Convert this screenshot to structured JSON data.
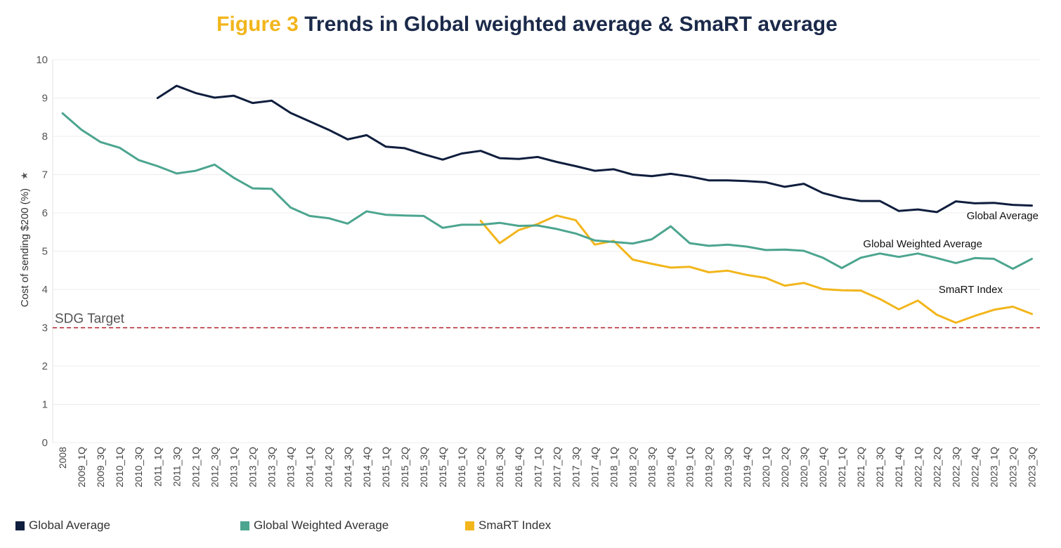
{
  "title": {
    "lead": "Figure 3",
    "rest": "Trends in Global weighted average & SmaRT average"
  },
  "chart_data": {
    "type": "line",
    "ylabel": "Cost of sending $200 (%)",
    "ylim": [
      0,
      10
    ],
    "yticks": [
      0,
      1,
      2,
      3,
      4,
      5,
      6,
      7,
      8,
      9,
      10
    ],
    "grid": true,
    "legend_position": "bottom-left",
    "categories": [
      "2008",
      "2009_1Q",
      "2009_3Q",
      "2010_1Q",
      "2010_3Q",
      "2011_1Q",
      "2011_3Q",
      "2012_1Q",
      "2012_3Q",
      "2013_1Q",
      "2013_2Q",
      "2013_3Q",
      "2013_4Q",
      "2014_1Q",
      "2014_2Q",
      "2014_3Q",
      "2014_4Q",
      "2015_1Q",
      "2015_2Q",
      "2015_3Q",
      "2015_4Q",
      "2016_1Q",
      "2016_2Q",
      "2016_3Q",
      "2016_4Q",
      "2017_1Q",
      "2017_2Q",
      "2017_3Q",
      "2017_4Q",
      "2018_1Q",
      "2018_2Q",
      "2018_3Q",
      "2018_4Q",
      "2019_1Q",
      "2019_2Q",
      "2019_3Q",
      "2019_4Q",
      "2020_1Q",
      "2020_2Q",
      "2020_3Q",
      "2020_4Q",
      "2021_1Q",
      "2021_2Q",
      "2021_3Q",
      "2021_4Q",
      "2022_1Q",
      "2022_2Q",
      "2022_3Q",
      "2022_4Q",
      "2023_1Q",
      "2023_2Q",
      "2023_3Q"
    ],
    "series": [
      {
        "name": "Global Average",
        "color": "#0f1e3d",
        "values": [
          null,
          null,
          null,
          null,
          null,
          9.0,
          9.32,
          9.13,
          9.01,
          9.06,
          8.87,
          8.93,
          8.61,
          8.39,
          8.17,
          7.92,
          8.03,
          7.73,
          7.69,
          7.53,
          7.39,
          7.55,
          7.62,
          7.43,
          7.41,
          7.46,
          7.33,
          7.22,
          7.1,
          7.14,
          7.0,
          6.96,
          7.02,
          6.95,
          6.85,
          6.85,
          6.83,
          6.8,
          6.68,
          6.76,
          6.52,
          6.39,
          6.31,
          6.31,
          6.05,
          6.09,
          6.02,
          6.3,
          6.25,
          6.26,
          6.21,
          6.19
        ]
      },
      {
        "name": "Global Weighted Average",
        "color": "#4ca58f",
        "values": [
          8.6,
          8.17,
          7.85,
          7.7,
          7.38,
          7.22,
          7.03,
          7.1,
          7.26,
          6.92,
          6.64,
          6.63,
          6.14,
          5.92,
          5.86,
          5.72,
          6.04,
          5.95,
          5.93,
          5.92,
          5.61,
          5.69,
          5.69,
          5.74,
          5.66,
          5.67,
          5.58,
          5.46,
          5.28,
          5.24,
          5.2,
          5.31,
          5.65,
          5.21,
          5.14,
          5.17,
          5.12,
          5.03,
          5.04,
          5.01,
          4.83,
          4.56,
          4.83,
          4.94,
          4.85,
          4.94,
          4.82,
          4.69,
          4.82,
          4.8,
          4.54,
          4.8
        ]
      },
      {
        "name": "SmaRT Index",
        "color": "#f2b61c",
        "values": [
          null,
          null,
          null,
          null,
          null,
          null,
          null,
          null,
          null,
          null,
          null,
          null,
          null,
          null,
          null,
          null,
          null,
          null,
          null,
          null,
          null,
          null,
          5.79,
          5.21,
          5.55,
          5.71,
          5.93,
          5.81,
          5.17,
          5.27,
          4.78,
          4.67,
          4.57,
          4.59,
          4.45,
          4.49,
          4.38,
          4.3,
          4.1,
          4.17,
          4.01,
          3.98,
          3.97,
          3.75,
          3.48,
          3.71,
          3.34,
          3.13,
          3.31,
          3.47,
          3.55,
          3.36
        ]
      }
    ],
    "reference_line": {
      "label": "SDG Target",
      "value": 3,
      "color": "#b11c2a"
    },
    "annotations": [
      "Global Average",
      "Global Weighted Average",
      "SmaRT Index"
    ]
  }
}
